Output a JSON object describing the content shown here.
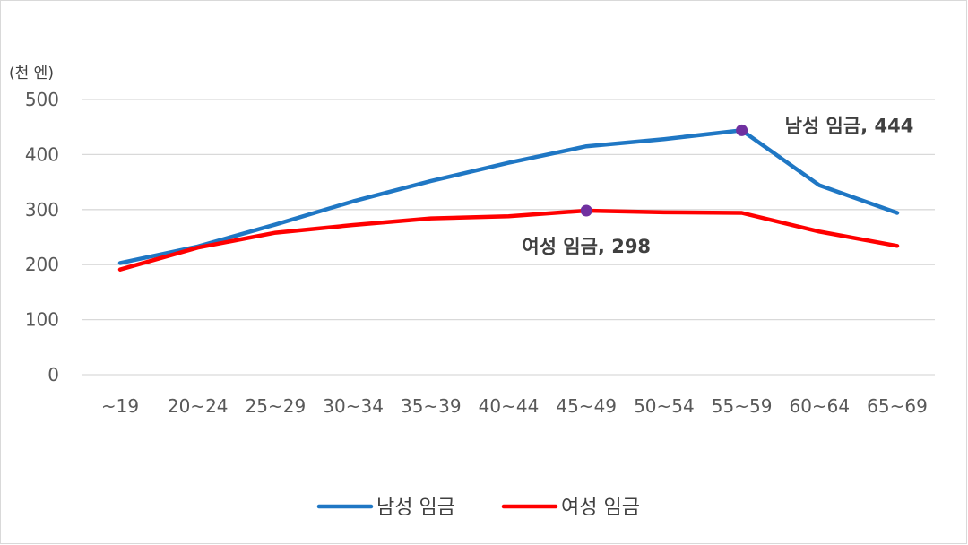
{
  "chart_data": {
    "type": "line",
    "title": "",
    "ylabel": "(천 엔)",
    "xlabel": "",
    "categories": [
      "~19",
      "20~24",
      "25~29",
      "30~34",
      "35~39",
      "40~44",
      "45~49",
      "50~54",
      "55~59",
      "60~64",
      "65~69"
    ],
    "ylim": [
      0,
      500
    ],
    "yticks": [
      0,
      100,
      200,
      300,
      400,
      500
    ],
    "grid": true,
    "legend_position": "bottom",
    "series": [
      {
        "name": "남성 임금",
        "color": "#1F77C4",
        "values": [
          203,
          233,
          273,
          315,
          352,
          385,
          415,
          428,
          444,
          344,
          294
        ]
      },
      {
        "name": "여성 임금",
        "color": "#FF0000",
        "values": [
          191,
          231,
          258,
          272,
          284,
          288,
          298,
          295,
          294,
          260,
          234
        ]
      }
    ],
    "annotations": [
      {
        "series": 0,
        "index": 8,
        "text": "남성 임금, 444",
        "marker_color": "#7030A0"
      },
      {
        "series": 1,
        "index": 6,
        "text": "여성 임금, 298",
        "marker_color": "#7030A0"
      }
    ]
  }
}
